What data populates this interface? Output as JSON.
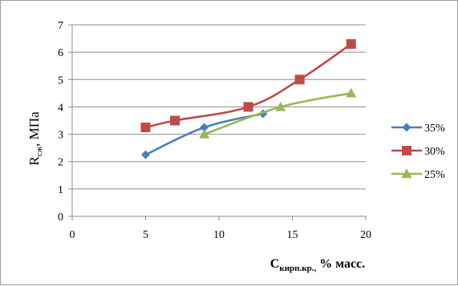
{
  "chart_data": {
    "type": "line",
    "xlim": [
      0,
      20
    ],
    "ylim": [
      0,
      7
    ],
    "x_ticks": [
      "0",
      "5",
      "10",
      "15",
      "20"
    ],
    "y_ticks": [
      "0",
      "1",
      "2",
      "3",
      "4",
      "5",
      "6",
      "7"
    ],
    "ylabel": {
      "main": "R",
      "sub": "сж",
      "rest": ", МПа"
    },
    "xlabel": {
      "main": "C",
      "sub": "кирп.кр.,",
      "rest": " % масс."
    },
    "grid": "horizontal",
    "legend_position": "right",
    "series": [
      {
        "name": "35%",
        "color": "#4a7ebb",
        "marker": "diamond",
        "points": [
          [
            5,
            2.25
          ],
          [
            9,
            3.25
          ],
          [
            13,
            3.75
          ]
        ]
      },
      {
        "name": "30%",
        "color": "#be4b48",
        "marker": "square",
        "points": [
          [
            5,
            3.25
          ],
          [
            7,
            3.5
          ],
          [
            12,
            4.0
          ],
          [
            15.5,
            5.0
          ],
          [
            19,
            6.3
          ]
        ]
      },
      {
        "name": "25%",
        "color": "#98b954",
        "marker": "triangle",
        "points": [
          [
            9,
            3.0
          ],
          [
            14.2,
            4.0
          ],
          [
            19,
            4.5
          ]
        ]
      }
    ]
  }
}
